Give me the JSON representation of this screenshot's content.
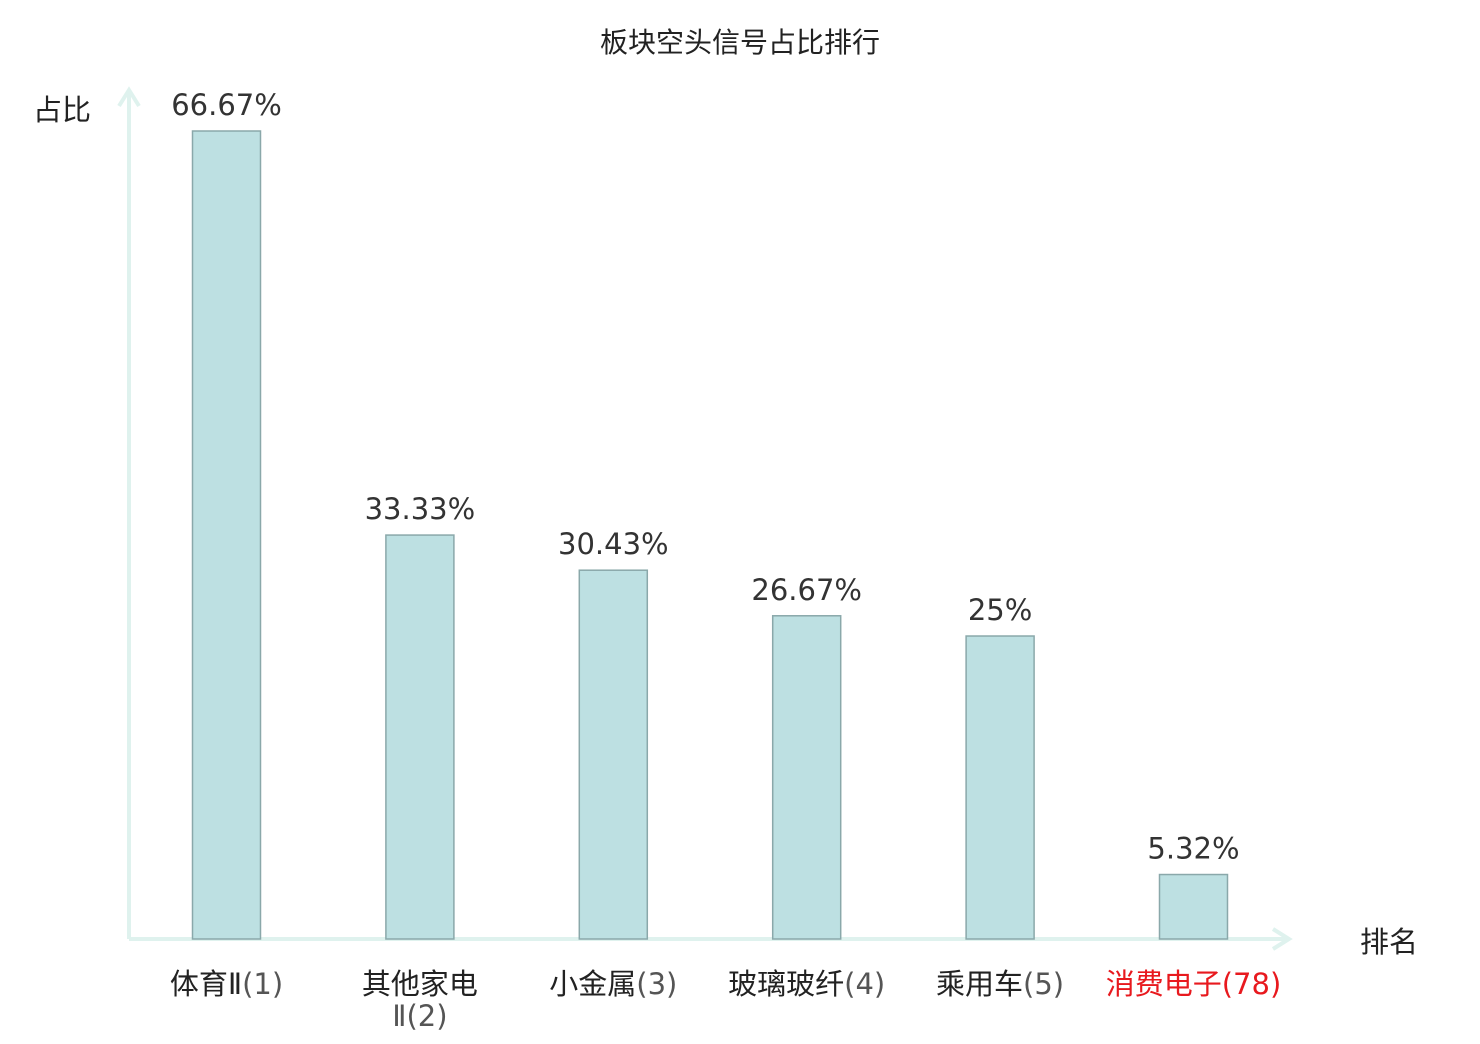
{
  "chart_data": {
    "type": "bar",
    "title": "板块空头信号占比排行",
    "ylabel": "占比",
    "xlabel": "排名",
    "ylim": [
      0,
      70
    ],
    "grid": false,
    "categories": [
      {
        "name": "体育Ⅱ",
        "rank": "(1)",
        "name_line2": "",
        "highlight": false
      },
      {
        "name": "其他家电",
        "rank": "(2)",
        "name_line2": "Ⅱ",
        "highlight": false
      },
      {
        "name": "小金属",
        "rank": "(3)",
        "name_line2": "",
        "highlight": false
      },
      {
        "name": "玻璃玻纤",
        "rank": "(4)",
        "name_line2": "",
        "highlight": false
      },
      {
        "name": "乘用车",
        "rank": "(5)",
        "name_line2": "",
        "highlight": false
      },
      {
        "name": "消费电子",
        "rank": "(78)",
        "name_line2": "",
        "highlight": true
      }
    ],
    "values": [
      66.67,
      33.33,
      30.43,
      26.67,
      25,
      5.32
    ],
    "value_labels": [
      "66.67%",
      "33.33%",
      "30.43%",
      "26.67%",
      "25%",
      "5.32%"
    ],
    "colors": {
      "bar_fill": "#bde0e2",
      "bar_stroke": "#8aa8aa",
      "axis": "#dff2ee",
      "text": "#222222",
      "rank_text": "#555555",
      "highlight": "#e8191e"
    }
  }
}
